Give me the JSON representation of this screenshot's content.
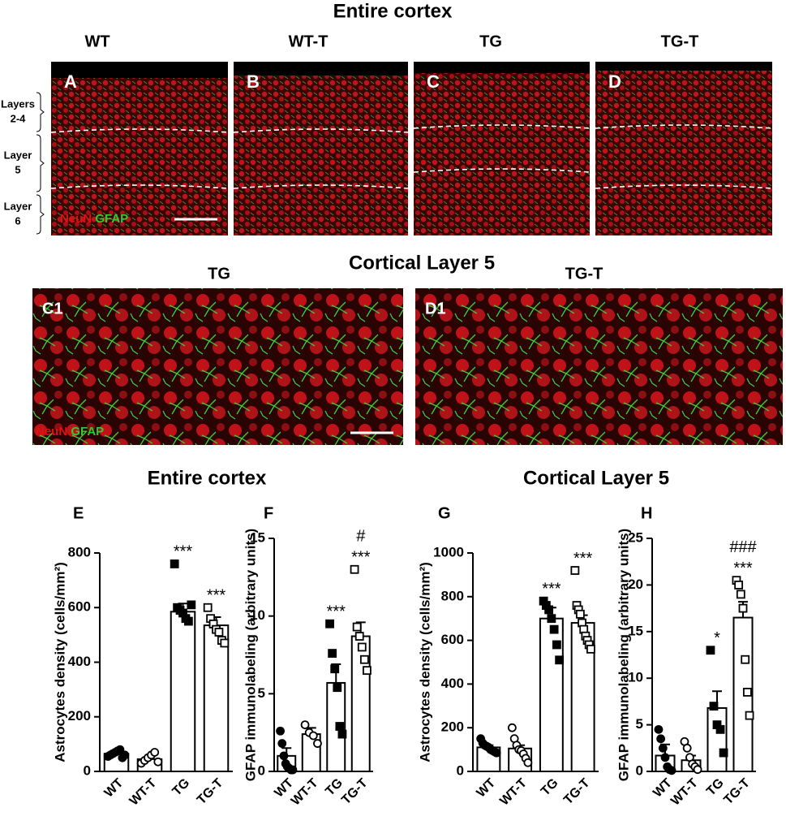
{
  "header": {
    "title": "Entire cortex"
  },
  "image_panels": [
    {
      "letter": "A",
      "group": "WT"
    },
    {
      "letter": "B",
      "group": "WT-T"
    },
    {
      "letter": "C",
      "group": "TG"
    },
    {
      "letter": "D",
      "group": "TG-T"
    }
  ],
  "layer_labels": [
    [
      "Layers",
      "2-4"
    ],
    [
      "Layer",
      "5"
    ],
    [
      "Layer",
      "6"
    ]
  ],
  "stain_labels": [
    "NeuN",
    "GFAP"
  ],
  "zoom_section": {
    "title": "Cortical Layer 5",
    "panels": [
      {
        "letter": "C1",
        "group": "TG"
      },
      {
        "letter": "D1",
        "group": "TG-T"
      }
    ]
  },
  "chart_sections": [
    "Entire cortex",
    "Cortical Layer 5"
  ],
  "chart_data": [
    {
      "type": "bar",
      "panel": "E",
      "y_label": "Astrocytes density (cells/mm²)",
      "categories": [
        "WT",
        "WT-T",
        "TG",
        "TG-T"
      ],
      "values": [
        65,
        45,
        585,
        535
      ],
      "errors": [
        8,
        12,
        30,
        30
      ],
      "points": [
        [
          55,
          60,
          65,
          70,
          75,
          80,
          50,
          60
        ],
        [
          30,
          40,
          50,
          60,
          70,
          35
        ],
        [
          760,
          600,
          590,
          580,
          560,
          550,
          610
        ],
        [
          600,
          560,
          540,
          520,
          510,
          480,
          470
        ]
      ],
      "markers": [
        "circle",
        "circle",
        "square",
        "square"
      ],
      "marker_filled": [
        true,
        false,
        true,
        false
      ],
      "annotations": [
        {
          "x": "TG",
          "text": "***"
        },
        {
          "x": "TG-T",
          "text": "***"
        }
      ],
      "ylim": [
        0,
        800
      ],
      "yticks": [
        0,
        200,
        400,
        600,
        800
      ],
      "color": "#000000"
    },
    {
      "type": "bar",
      "panel": "F",
      "y_label": "GFAP immunolabeling (arbitrary units)",
      "categories": [
        "WT",
        "WT-T",
        "TG",
        "TG-T"
      ],
      "values": [
        1,
        2.4,
        5.7,
        8.7
      ],
      "errors": [
        0.5,
        0.4,
        1.2,
        0.9
      ],
      "points": [
        [
          2.6,
          1.8,
          1.0,
          0.5,
          0.3,
          0.2,
          0.1,
          0.1
        ],
        [
          3.0,
          2.5,
          2.3,
          1.8
        ],
        [
          9.5,
          7.6,
          6.6,
          5.4,
          2.9,
          2.4
        ],
        [
          13,
          9.3,
          8.7,
          8.0,
          7.2,
          6.5
        ]
      ],
      "markers": [
        "circle",
        "circle",
        "square",
        "square"
      ],
      "marker_filled": [
        true,
        false,
        true,
        false
      ],
      "annotations": [
        {
          "x": "TG",
          "text": "***"
        },
        {
          "x": "TG-T",
          "text": "***"
        },
        {
          "x": "TG-T",
          "text": "#"
        }
      ],
      "ylim": [
        0,
        15
      ],
      "yticks": [
        0,
        5,
        10,
        15
      ],
      "color": "#000000"
    },
    {
      "type": "bar",
      "panel": "G",
      "y_label": "Astrocytes density (cells/mm²)",
      "categories": [
        "WT",
        "WT-T",
        "TG",
        "TG-T"
      ],
      "values": [
        110,
        105,
        700,
        680
      ],
      "errors": [
        10,
        15,
        50,
        35
      ],
      "points": [
        [
          150,
          130,
          120,
          115,
          110,
          100,
          95,
          90,
          85
        ],
        [
          200,
          150,
          120,
          100,
          95,
          80,
          60,
          40
        ],
        [
          780,
          760,
          740,
          700,
          650,
          580,
          510
        ],
        [
          920,
          760,
          740,
          720,
          680,
          650,
          620,
          600,
          580,
          560
        ]
      ],
      "markers": [
        "circle",
        "circle",
        "square",
        "square"
      ],
      "marker_filled": [
        true,
        false,
        true,
        false
      ],
      "annotations": [
        {
          "x": "TG",
          "text": "***"
        },
        {
          "x": "TG-T",
          "text": "***"
        }
      ],
      "ylim": [
        0,
        1000
      ],
      "yticks": [
        0,
        200,
        400,
        600,
        800,
        1000
      ],
      "color": "#000000"
    },
    {
      "type": "bar",
      "panel": "H",
      "y_label": "GFAP immunolabeling (arbitrary units)",
      "categories": [
        "WT",
        "WT-T",
        "TG",
        "TG-T"
      ],
      "values": [
        1.7,
        1.2,
        6.8,
        16.5
      ],
      "errors": [
        1.2,
        0.5,
        1.8,
        1.7
      ],
      "points": [
        [
          4.5,
          3.5,
          2.5,
          1.5,
          0.5,
          0.2,
          0.1
        ],
        [
          3.2,
          2.5,
          1.5,
          0.8,
          0.5,
          0.2
        ],
        [
          13,
          7,
          5,
          4.5,
          2
        ],
        [
          20.5,
          20,
          19,
          17.5,
          12,
          8.5,
          6
        ]
      ],
      "markers": [
        "circle",
        "circle",
        "square",
        "square"
      ],
      "marker_filled": [
        true,
        false,
        true,
        false
      ],
      "annotations": [
        {
          "x": "TG",
          "text": "*"
        },
        {
          "x": "TG-T",
          "text": "***"
        },
        {
          "x": "TG-T",
          "text": "###"
        }
      ],
      "ylim": [
        0,
        25
      ],
      "yticks": [
        0,
        5,
        10,
        15,
        20,
        25
      ],
      "color": "#000000"
    }
  ]
}
